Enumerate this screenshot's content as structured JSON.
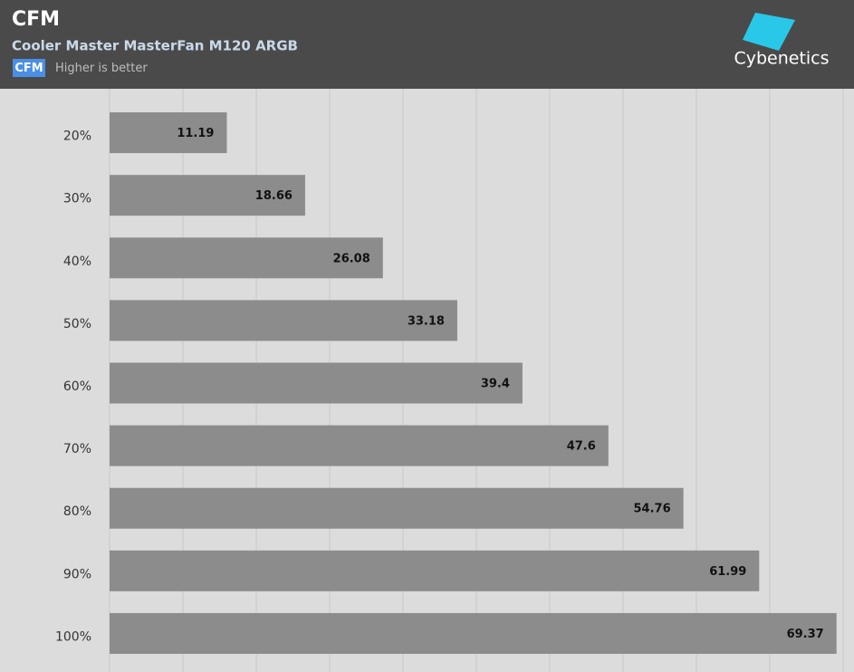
{
  "chart_data": {
    "type": "hbar",
    "title": "CFM",
    "subtitle": "Cooler Master MasterFan M120 ARGB",
    "legend_badge": "CFM",
    "legend_note": "Higher is better",
    "logo": "Cybenetics",
    "categories": [
      "20%",
      "30%",
      "40%",
      "50%",
      "60%",
      "70%",
      "80%",
      "90%",
      "100%"
    ],
    "values": [
      11.19,
      18.66,
      26.08,
      33.18,
      39.4,
      47.6,
      54.76,
      61.99,
      69.37
    ],
    "color": "#8c8c8c",
    "xlim": [
      0,
      70
    ],
    "xticks": [
      0,
      7,
      14,
      21,
      28,
      35,
      42,
      49,
      56,
      63,
      70
    ],
    "grid": true
  }
}
